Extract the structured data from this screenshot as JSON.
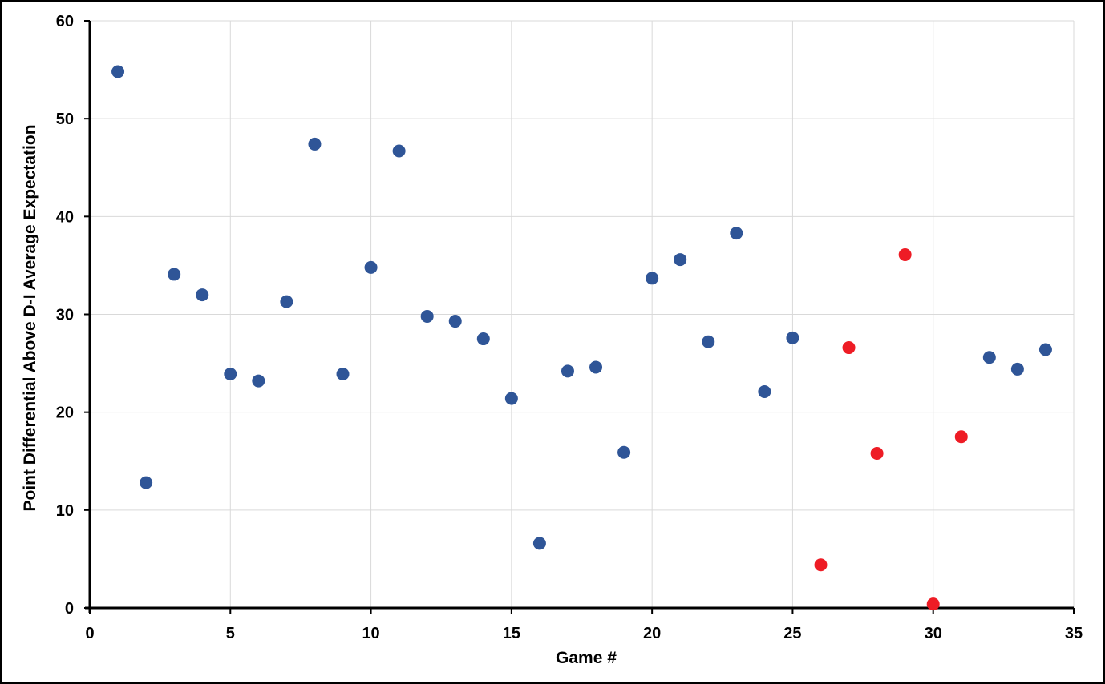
{
  "chart_data": {
    "type": "scatter",
    "title": "",
    "xlabel": "Game #",
    "ylabel": "Point Differential Above D-I Average Expectation",
    "xlim": [
      0,
      35
    ],
    "ylim": [
      0,
      60
    ],
    "x_ticks": [
      0,
      5,
      10,
      15,
      20,
      25,
      30,
      35
    ],
    "y_ticks": [
      0,
      10,
      20,
      30,
      40,
      50,
      60
    ],
    "grid": true,
    "legend": "none",
    "series": [
      {
        "color": "#2F5597",
        "points": [
          {
            "x": 1,
            "y": 54.8
          },
          {
            "x": 2,
            "y": 12.8
          },
          {
            "x": 3,
            "y": 34.1
          },
          {
            "x": 4,
            "y": 32.0
          },
          {
            "x": 5,
            "y": 23.9
          },
          {
            "x": 6,
            "y": 23.2
          },
          {
            "x": 7,
            "y": 31.3
          },
          {
            "x": 8,
            "y": 47.4
          },
          {
            "x": 9,
            "y": 23.9
          },
          {
            "x": 10,
            "y": 34.8
          },
          {
            "x": 11,
            "y": 46.7
          },
          {
            "x": 12,
            "y": 29.8
          },
          {
            "x": 13,
            "y": 29.3
          },
          {
            "x": 14,
            "y": 27.5
          },
          {
            "x": 15,
            "y": 21.4
          },
          {
            "x": 16,
            "y": 6.6
          },
          {
            "x": 17,
            "y": 24.2
          },
          {
            "x": 18,
            "y": 24.6
          },
          {
            "x": 19,
            "y": 15.9
          },
          {
            "x": 20,
            "y": 33.7
          },
          {
            "x": 21,
            "y": 35.6
          },
          {
            "x": 22,
            "y": 27.2
          },
          {
            "x": 23,
            "y": 38.3
          },
          {
            "x": 24,
            "y": 22.1
          },
          {
            "x": 25,
            "y": 27.6
          },
          {
            "x": 32,
            "y": 25.6
          },
          {
            "x": 33,
            "y": 24.4
          },
          {
            "x": 34,
            "y": 26.4
          }
        ]
      },
      {
        "color": "#EE1C25",
        "points": [
          {
            "x": 26,
            "y": 4.4
          },
          {
            "x": 27,
            "y": 26.6
          },
          {
            "x": 28,
            "y": 15.8
          },
          {
            "x": 29,
            "y": 36.1
          },
          {
            "x": 30,
            "y": 0.4
          },
          {
            "x": 31,
            "y": 17.5
          }
        ]
      }
    ]
  }
}
